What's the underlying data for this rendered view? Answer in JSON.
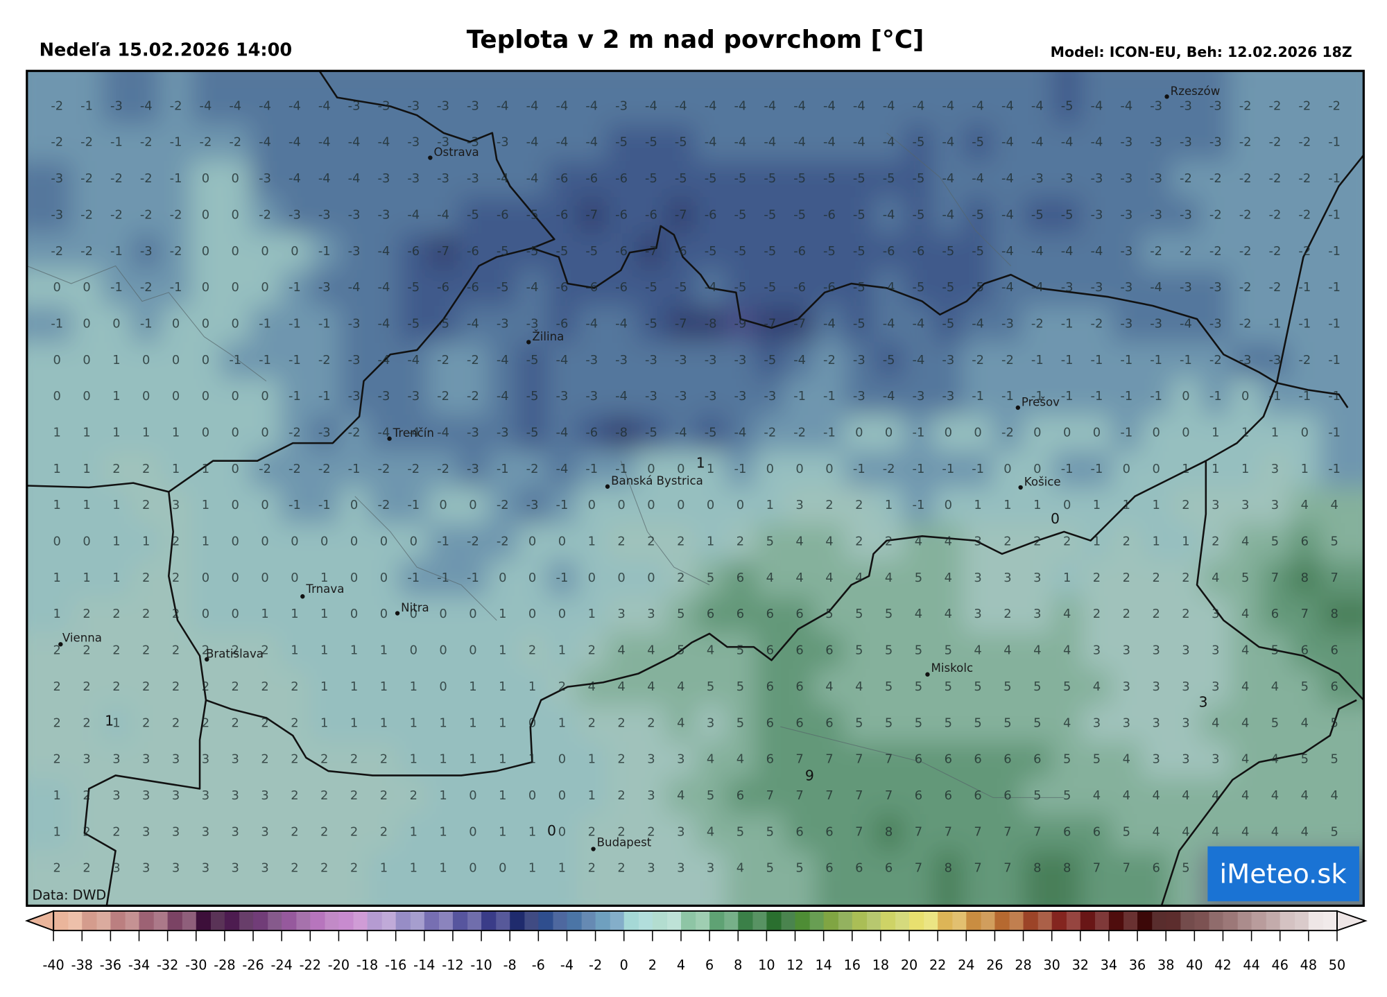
{
  "header": {
    "valid_time": "Nedeľa 15.02.2026 14:00",
    "title": "Teplota v 2 m nad povrchom [°C]",
    "model_run": "Model: ICON-EU, Beh: 12.02.2026 18Z"
  },
  "source": "Data: DWD",
  "logo": "iMeteo.sk",
  "cities": [
    "Rzeszów",
    "Ostrava",
    "Žilina",
    "Trenčín",
    "Banská Bystrica",
    "Prešov",
    "Košice",
    "Trnava",
    "Nitra",
    "Bratislava",
    "Vienna",
    "Miskolc",
    "Budapest"
  ],
  "contour_labels": [
    1,
    0,
    3,
    9,
    1,
    0
  ],
  "grid": {
    "values": [
      [
        -2,
        -1,
        -3,
        -4,
        -2,
        -4,
        -4,
        -4,
        -4,
        -4,
        -3,
        -3,
        -3,
        -3,
        -3,
        -4,
        -4,
        -4,
        -4,
        -3,
        -4,
        -4,
        -4,
        -4,
        -4,
        -4,
        -4,
        -4,
        -4,
        -4,
        -4,
        -4,
        -4,
        -4,
        -5,
        -4,
        -4,
        -3,
        -3,
        -3,
        -2,
        -2,
        -2,
        -2
      ],
      [
        -2,
        -2,
        -1,
        -2,
        -1,
        -2,
        -2,
        -4,
        -4,
        -4,
        -4,
        -4,
        -3,
        -3,
        -3,
        -3,
        -4,
        -4,
        -4,
        -5,
        -5,
        -5,
        -4,
        -4,
        -4,
        -4,
        -4,
        -4,
        -4,
        -5,
        -4,
        -5,
        -4,
        -4,
        -4,
        -4,
        -3,
        -3,
        -3,
        -3,
        -2,
        -2,
        -2,
        -1
      ],
      [
        -3,
        -2,
        -2,
        -2,
        -1,
        0,
        0,
        -3,
        -4,
        -4,
        -4,
        -3,
        -3,
        -3,
        -3,
        -4,
        -4,
        -6,
        -6,
        -6,
        -5,
        -5,
        -5,
        -5,
        -5,
        -5,
        -5,
        -5,
        -5,
        -5,
        -4,
        -4,
        -4,
        -3,
        -3,
        -3,
        -3,
        -3,
        -2,
        -2,
        -2,
        -2,
        -2,
        -1
      ],
      [
        -3,
        -2,
        -2,
        -2,
        -2,
        0,
        0,
        -2,
        -3,
        -3,
        -3,
        -3,
        -4,
        -4,
        -5,
        -6,
        -5,
        -6,
        -7,
        -6,
        -6,
        -7,
        -6,
        -5,
        -5,
        -5,
        -6,
        -5,
        -4,
        -5,
        -4,
        -5,
        -4,
        -5,
        -5,
        -3,
        -3,
        -3,
        -3,
        -2,
        -2,
        -2,
        -2,
        -1
      ],
      [
        -2,
        -2,
        -1,
        -3,
        -2,
        0,
        0,
        0,
        0,
        -1,
        -3,
        -4,
        -6,
        -7,
        -6,
        -5,
        -5,
        -5,
        -5,
        -6,
        -7,
        -6,
        -5,
        -5,
        -5,
        -6,
        -5,
        -5,
        -6,
        -6,
        -5,
        -5,
        -4,
        -4,
        -4,
        -4,
        -3,
        -2,
        -2,
        -2,
        -2,
        -2,
        -2,
        -1
      ],
      [
        0,
        0,
        -1,
        -2,
        -1,
        0,
        0,
        0,
        -1,
        -3,
        -4,
        -4,
        -5,
        -6,
        -6,
        -5,
        -4,
        -6,
        -6,
        -6,
        -5,
        -5,
        -4,
        -5,
        -5,
        -6,
        -6,
        -5,
        -4,
        -5,
        -5,
        -5,
        -4,
        -4,
        -3,
        -3,
        -3,
        -4,
        -3,
        -3,
        -2,
        -2,
        -1,
        -1
      ],
      [
        -1,
        0,
        0,
        -1,
        0,
        0,
        0,
        -1,
        -1,
        -1,
        -3,
        -4,
        -5,
        -5,
        -4,
        -3,
        -3,
        -6,
        -4,
        -4,
        -5,
        -7,
        -8,
        -9,
        -7,
        -7,
        -4,
        -5,
        -4,
        -4,
        -5,
        -4,
        -3,
        -2,
        -1,
        -2,
        -3,
        -3,
        -4,
        -3,
        -2,
        -1,
        -1,
        -1
      ],
      [
        0,
        0,
        1,
        0,
        0,
        0,
        -1,
        -1,
        -1,
        -2,
        -3,
        -4,
        -4,
        -2,
        -2,
        -4,
        -5,
        -4,
        -3,
        -3,
        -3,
        -3,
        -3,
        -3,
        -5,
        -4,
        -2,
        -3,
        -5,
        -4,
        -3,
        -2,
        -2,
        -1,
        -1,
        -1,
        -1,
        -1,
        -1,
        -2,
        -3,
        -3,
        -2,
        -1
      ],
      [
        0,
        0,
        1,
        0,
        0,
        0,
        0,
        0,
        -1,
        -1,
        -3,
        -3,
        -3,
        -2,
        -2,
        -4,
        -5,
        -3,
        -3,
        -4,
        -3,
        -3,
        -3,
        -3,
        -3,
        -1,
        -1,
        -3,
        -4,
        -3,
        -3,
        -1,
        -1,
        -1,
        -1,
        -1,
        -1,
        -1,
        0,
        -1,
        0,
        -1,
        -1,
        -1
      ],
      [
        1,
        1,
        1,
        1,
        1,
        0,
        0,
        0,
        -2,
        -3,
        -2,
        -4,
        -4,
        -4,
        -3,
        -3,
        -5,
        -4,
        -6,
        -8,
        -5,
        -4,
        -5,
        -4,
        -2,
        -2,
        -1,
        0,
        0,
        -1,
        0,
        0,
        -2,
        0,
        0,
        0,
        -1,
        0,
        0,
        1,
        1,
        1,
        0,
        -1
      ],
      [
        1,
        1,
        2,
        2,
        1,
        1,
        0,
        -2,
        -2,
        -2,
        -1,
        -2,
        -2,
        -2,
        -3,
        -1,
        -2,
        -4,
        -1,
        -1,
        0,
        0,
        1,
        -1,
        0,
        0,
        0,
        -1,
        -2,
        -1,
        -1,
        -1,
        0,
        0,
        -1,
        -1,
        0,
        0,
        1,
        1,
        1,
        3,
        1,
        -1
      ],
      [
        1,
        1,
        1,
        2,
        3,
        1,
        0,
        0,
        -1,
        -1,
        0,
        -2,
        -1,
        0,
        0,
        -2,
        -3,
        -1,
        0,
        0,
        0,
        0,
        0,
        0,
        1,
        3,
        2,
        2,
        1,
        -1,
        0,
        1,
        1,
        1,
        0,
        1,
        1,
        1,
        2,
        3,
        3,
        3,
        4,
        4
      ],
      [
        0,
        0,
        1,
        1,
        2,
        1,
        0,
        0,
        0,
        0,
        0,
        0,
        0,
        -1,
        -2,
        -2,
        0,
        0,
        1,
        2,
        2,
        2,
        1,
        2,
        5,
        4,
        4,
        2,
        2,
        4,
        4,
        3,
        2,
        2,
        2,
        1,
        2,
        1,
        1,
        2,
        4,
        5,
        6,
        5
      ],
      [
        1,
        1,
        1,
        2,
        2,
        0,
        0,
        0,
        0,
        1,
        0,
        0,
        -1,
        -1,
        -1,
        0,
        0,
        -1,
        0,
        0,
        0,
        2,
        5,
        6,
        4,
        4,
        4,
        4,
        4,
        5,
        4,
        3,
        3,
        3,
        1,
        2,
        2,
        2,
        2,
        4,
        5,
        7,
        8,
        7
      ],
      [
        1,
        2,
        2,
        2,
        2,
        0,
        0,
        1,
        1,
        1,
        0,
        0,
        0,
        0,
        0,
        1,
        0,
        0,
        1,
        3,
        3,
        5,
        6,
        6,
        6,
        6,
        5,
        5,
        5,
        4,
        4,
        3,
        2,
        3,
        4,
        2,
        2,
        2,
        2,
        3,
        4,
        6,
        7,
        8
      ],
      [
        2,
        2,
        2,
        2,
        2,
        2,
        2,
        2,
        1,
        1,
        1,
        1,
        0,
        0,
        0,
        1,
        2,
        1,
        2,
        4,
        4,
        5,
        4,
        5,
        6,
        6,
        6,
        5,
        5,
        5,
        5,
        4,
        4,
        4,
        4,
        3,
        3,
        3,
        3,
        3,
        4,
        5,
        6,
        6
      ],
      [
        2,
        2,
        2,
        2,
        2,
        2,
        2,
        2,
        2,
        1,
        1,
        1,
        1,
        0,
        1,
        1,
        1,
        2,
        4,
        4,
        4,
        4,
        5,
        5,
        6,
        6,
        4,
        4,
        5,
        5,
        5,
        5,
        5,
        5,
        5,
        4,
        3,
        3,
        3,
        3,
        4,
        4,
        5,
        6
      ],
      [
        2,
        2,
        1,
        2,
        2,
        2,
        2,
        2,
        2,
        1,
        1,
        1,
        1,
        1,
        1,
        1,
        0,
        1,
        2,
        2,
        2,
        4,
        3,
        5,
        6,
        6,
        6,
        5,
        5,
        5,
        5,
        5,
        5,
        5,
        4,
        3,
        3,
        3,
        3,
        4,
        4,
        5,
        4,
        5
      ],
      [
        2,
        3,
        3,
        3,
        3,
        3,
        3,
        2,
        2,
        2,
        2,
        2,
        1,
        1,
        1,
        1,
        1,
        0,
        1,
        2,
        3,
        3,
        4,
        4,
        6,
        7,
        7,
        7,
        7,
        6,
        6,
        6,
        6,
        6,
        5,
        5,
        4,
        3,
        3,
        3,
        4,
        4,
        5,
        5
      ],
      [
        1,
        2,
        3,
        3,
        3,
        3,
        3,
        3,
        2,
        2,
        2,
        2,
        2,
        1,
        0,
        1,
        0,
        0,
        1,
        2,
        3,
        4,
        5,
        6,
        7,
        7,
        7,
        7,
        7,
        6,
        6,
        6,
        6,
        5,
        5,
        4,
        4,
        4,
        4,
        4,
        4,
        4,
        4,
        4
      ],
      [
        1,
        2,
        2,
        3,
        3,
        3,
        3,
        3,
        2,
        2,
        2,
        2,
        1,
        1,
        0,
        1,
        1,
        0,
        2,
        2,
        2,
        3,
        4,
        5,
        5,
        6,
        6,
        7,
        8,
        7,
        7,
        7,
        7,
        7,
        6,
        6,
        5,
        4,
        4,
        4,
        4,
        4,
        4,
        5
      ],
      [
        2,
        2,
        3,
        3,
        3,
        3,
        3,
        3,
        2,
        2,
        2,
        1,
        1,
        1,
        0,
        0,
        1,
        1,
        2,
        2,
        3,
        3,
        3,
        4,
        5,
        5,
        6,
        6,
        6,
        7,
        8,
        7,
        7,
        8,
        8,
        7,
        7,
        6,
        5,
        null,
        null,
        null,
        null,
        null
      ]
    ]
  },
  "colorbar": {
    "ticks": [
      -40,
      -38,
      -36,
      -34,
      -32,
      -30,
      -28,
      -26,
      -24,
      -22,
      -20,
      -18,
      -16,
      -14,
      -12,
      -10,
      -8,
      -6,
      -4,
      -2,
      0,
      2,
      4,
      6,
      8,
      10,
      12,
      14,
      16,
      18,
      20,
      22,
      24,
      26,
      28,
      30,
      32,
      34,
      36,
      38,
      40,
      42,
      44,
      46,
      48,
      50
    ],
    "colors": [
      "#eab59b",
      "#d49c8d",
      "#bb7f80",
      "#9d6274",
      "#7b4364",
      "#3d0f3a",
      "#4d1c50",
      "#713d78",
      "#96599d",
      "#b775bd",
      "#c88bcf",
      "#b59bd1",
      "#978dc6",
      "#776fb2",
      "#57559e",
      "#3a3c88",
      "#1f2b6d",
      "#2f4e8e",
      "#4b75a6",
      "#6fa0bf",
      "#a5d8d6",
      "#b3ddd0",
      "#8ec5a5",
      "#5fa274",
      "#3b8048",
      "#2a6f2f",
      "#4e8d35",
      "#80a543",
      "#aabe56",
      "#ced366",
      "#e8e06f",
      "#ddb557",
      "#c98d41",
      "#b66930",
      "#9c4428",
      "#84251f",
      "#691616",
      "#4f0d0d",
      "#3c0808",
      "#5c2d2d",
      "#7c5252",
      "#9c7878",
      "#b99c9c",
      "#d4c2c2",
      "#eee6e6"
    ]
  }
}
